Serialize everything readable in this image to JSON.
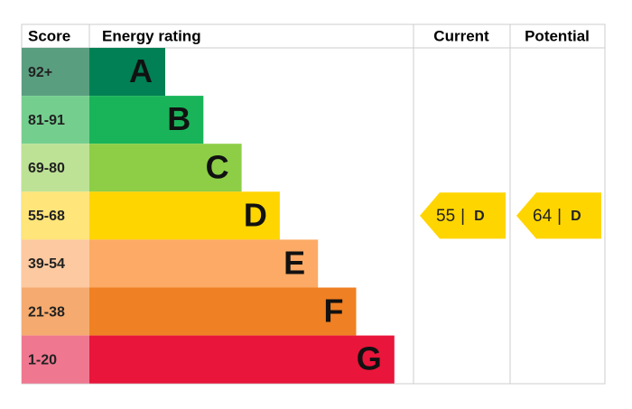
{
  "headers": {
    "score": "Score",
    "rating": "Energy rating",
    "current": "Current",
    "potential": "Potential"
  },
  "bands": [
    {
      "score": "92+",
      "letter": "A",
      "color": "#008054",
      "score_color": "#5a9e80"
    },
    {
      "score": "81-91",
      "letter": "B",
      "color": "#19b459",
      "score_color": "#74cf8f"
    },
    {
      "score": "69-80",
      "letter": "C",
      "color": "#8dce46",
      "score_color": "#bde295"
    },
    {
      "score": "55-68",
      "letter": "D",
      "color": "#ffd500",
      "score_color": "#ffe57a"
    },
    {
      "score": "39-54",
      "letter": "E",
      "color": "#fcaa65",
      "score_color": "#fdc9a0"
    },
    {
      "score": "21-38",
      "letter": "F",
      "color": "#ef8023",
      "score_color": "#f5ab6f"
    },
    {
      "score": "1-20",
      "letter": "G",
      "color": "#e9153b",
      "score_color": "#f07790"
    }
  ],
  "current": {
    "value": 55,
    "separator": "|",
    "letter": "D"
  },
  "potential": {
    "value": 64,
    "separator": "|",
    "letter": "D"
  }
}
